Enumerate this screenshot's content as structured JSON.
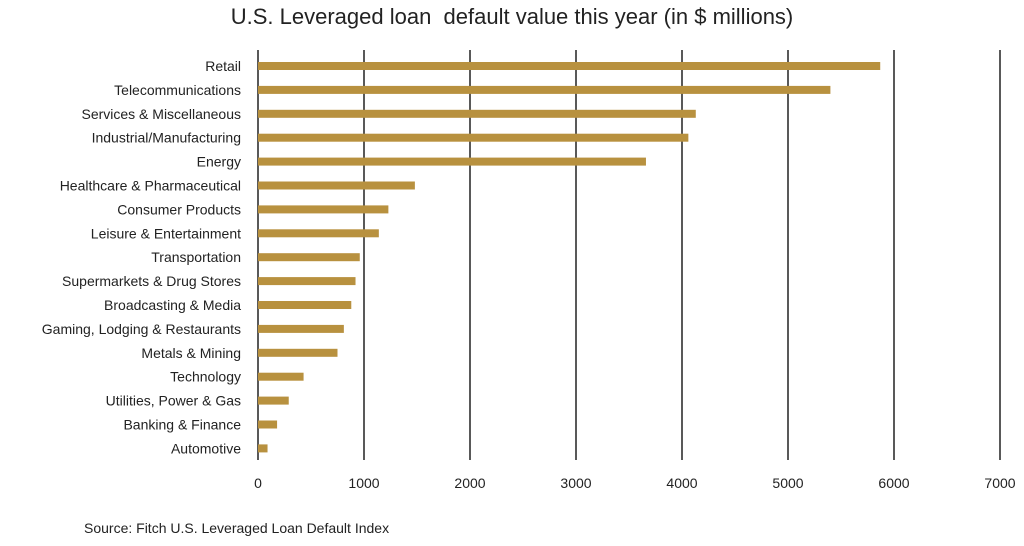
{
  "chart_data": {
    "type": "bar",
    "orientation": "horizontal",
    "title": "U.S. Leveraged loan  default value this year (in $ millions)",
    "xlabel": "",
    "ylabel": "",
    "categories": [
      "Retail",
      "Telecommunications",
      "Services & Miscellaneous",
      "Industrial/Manufacturing",
      "Energy",
      "Healthcare & Pharmaceutical",
      "Consumer Products",
      "Leisure & Entertainment",
      "Transportation",
      "Supermarkets & Drug Stores",
      "Broadcasting & Media",
      "Gaming, Lodging & Restaurants",
      "Metals & Mining",
      "Technology",
      "Utilities, Power & Gas",
      "Banking & Finance",
      "Automotive"
    ],
    "values": [
      5870,
      5400,
      4130,
      4060,
      3660,
      1480,
      1230,
      1140,
      960,
      920,
      880,
      810,
      750,
      430,
      290,
      180,
      90
    ],
    "xlim": [
      0,
      7000
    ],
    "xticks": [
      0,
      1000,
      2000,
      3000,
      4000,
      5000,
      6000,
      7000
    ],
    "grid": "vertical",
    "bar_color": "#B8913F",
    "grid_color": "#222222",
    "legend": "none"
  },
  "source": "Source: Fitch U.S. Leveraged Loan Default Index"
}
